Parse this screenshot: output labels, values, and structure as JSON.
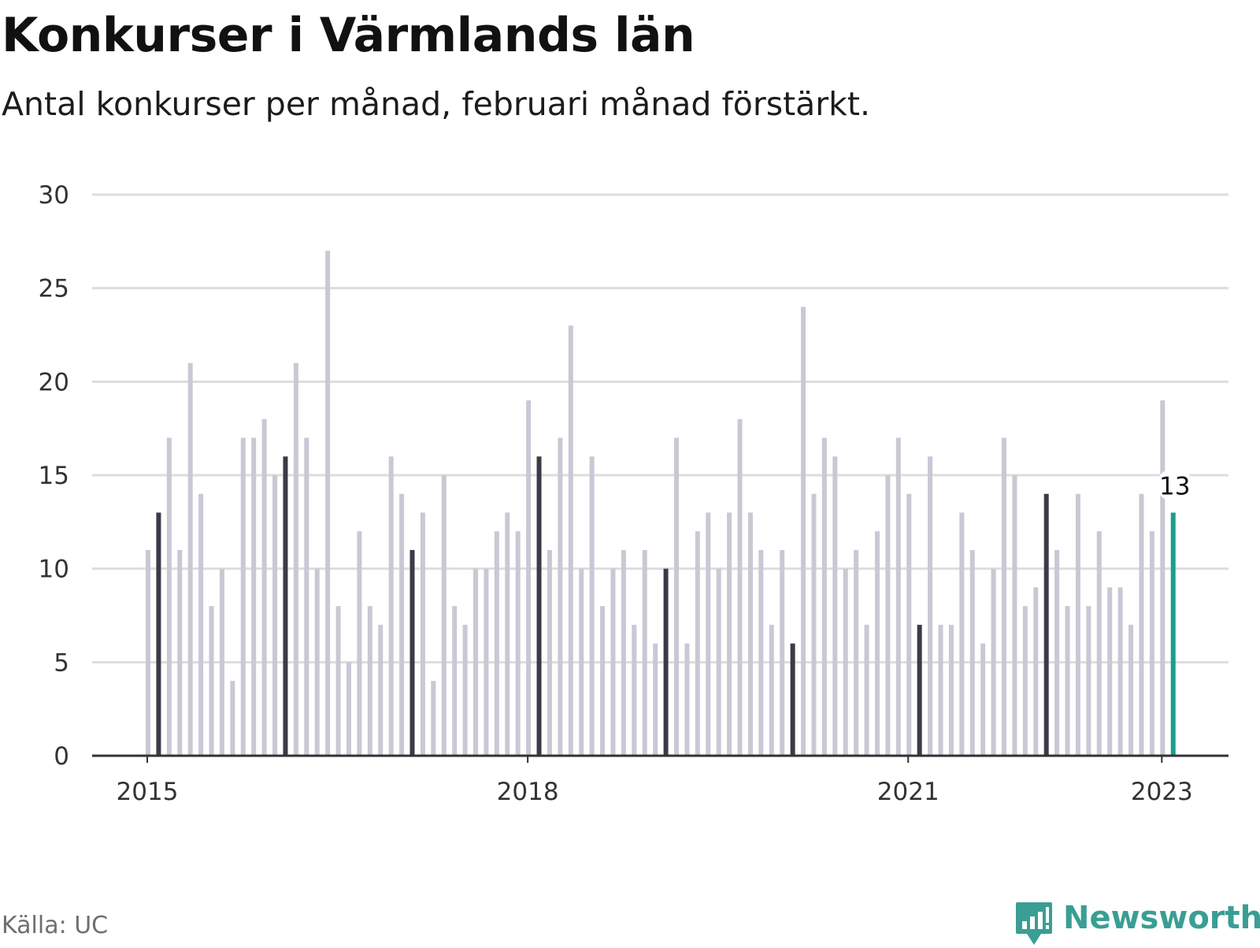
{
  "title": "Konkurser i Värmlands län",
  "subtitle": "Antal konkurser per månad, februari månad förstärkt.",
  "source": "Källa: UC",
  "brand": "Newsworthy",
  "colors": {
    "bar": "#c9c8d4",
    "highlight": "#3b3a47",
    "latest": "#1a9e8e",
    "grid": "#dddddd",
    "axis": "#333333",
    "brand": "#3a9e94"
  },
  "chart_data": {
    "type": "bar",
    "title": "Konkurser i Värmlands län",
    "subtitle": "Antal konkurser per månad, februari månad förstärkt.",
    "xlabel": "",
    "ylabel": "",
    "ylim": [
      0,
      30
    ],
    "yticks": [
      0,
      5,
      10,
      15,
      20,
      25,
      30
    ],
    "xticks": [
      {
        "label": "2015",
        "at_index": 0
      },
      {
        "label": "2018",
        "at_index": 36
      },
      {
        "label": "2021",
        "at_index": 72
      },
      {
        "label": "2023",
        "at_index": 96
      }
    ],
    "start": "2015-01",
    "highlight_month": "februari",
    "grid": true,
    "categories": [
      "2015-01",
      "2015-02",
      "2015-03",
      "2015-04",
      "2015-05",
      "2015-06",
      "2015-07",
      "2015-08",
      "2015-09",
      "2015-10",
      "2015-11",
      "2015-12",
      "2016-01",
      "2016-02",
      "2016-03",
      "2016-04",
      "2016-05",
      "2016-06",
      "2016-07",
      "2016-08",
      "2016-09",
      "2016-10",
      "2016-11",
      "2016-12",
      "2017-01",
      "2017-02",
      "2017-03",
      "2017-04",
      "2017-05",
      "2017-06",
      "2017-07",
      "2017-08",
      "2017-09",
      "2017-10",
      "2017-11",
      "2017-12",
      "2018-01",
      "2018-02",
      "2018-03",
      "2018-04",
      "2018-05",
      "2018-06",
      "2018-07",
      "2018-08",
      "2018-09",
      "2018-10",
      "2018-11",
      "2018-12",
      "2019-01",
      "2019-02",
      "2019-03",
      "2019-04",
      "2019-05",
      "2019-06",
      "2019-07",
      "2019-08",
      "2019-09",
      "2019-10",
      "2019-11",
      "2019-12",
      "2020-01",
      "2020-02",
      "2020-03",
      "2020-04",
      "2020-05",
      "2020-06",
      "2020-07",
      "2020-08",
      "2020-09",
      "2020-10",
      "2020-11",
      "2020-12",
      "2021-01",
      "2021-02",
      "2021-03",
      "2021-04",
      "2021-05",
      "2021-06",
      "2021-07",
      "2021-08",
      "2021-09",
      "2021-10",
      "2021-11",
      "2021-12",
      "2022-01",
      "2022-02",
      "2022-03",
      "2022-04",
      "2022-05",
      "2022-06",
      "2022-07",
      "2022-08",
      "2022-09",
      "2022-10",
      "2022-11",
      "2022-12",
      "2023-01",
      "2023-02"
    ],
    "values": [
      11,
      13,
      17,
      11,
      21,
      14,
      8,
      10,
      4,
      17,
      17,
      18,
      15,
      16,
      21,
      17,
      10,
      27,
      8,
      5,
      12,
      8,
      7,
      16,
      14,
      11,
      13,
      4,
      15,
      8,
      7,
      10,
      10,
      12,
      13,
      12,
      19,
      16,
      11,
      17,
      23,
      10,
      16,
      8,
      10,
      11,
      7,
      11,
      6,
      10,
      17,
      6,
      12,
      13,
      10,
      13,
      18,
      13,
      11,
      7,
      11,
      6,
      24,
      14,
      17,
      16,
      10,
      11,
      7,
      12,
      15,
      17,
      14,
      7,
      16,
      7,
      7,
      13,
      11,
      6,
      10,
      17,
      15,
      8,
      9,
      14,
      11,
      8,
      14,
      8,
      12,
      9,
      9,
      7,
      14,
      12,
      19,
      13
    ],
    "annotations": [
      {
        "text": "13",
        "category": "2023-02"
      }
    ]
  }
}
